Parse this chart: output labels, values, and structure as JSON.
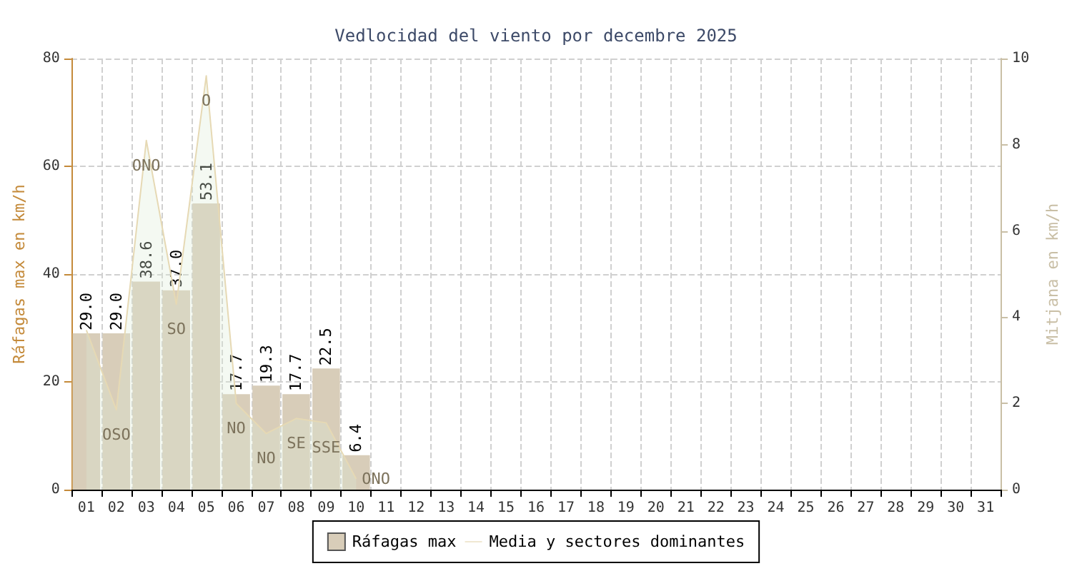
{
  "chart_data": {
    "type": "bar",
    "title": "Vedlocidad del viento por decembre 2025",
    "ylabel": "Ráfagas max en km/h",
    "y2label": "Mitjana en km/h",
    "categories": [
      "01",
      "02",
      "03",
      "04",
      "05",
      "06",
      "07",
      "08",
      "09",
      "10",
      "11",
      "12",
      "13",
      "14",
      "15",
      "16",
      "17",
      "18",
      "19",
      "20",
      "21",
      "22",
      "23",
      "24",
      "25",
      "26",
      "27",
      "28",
      "29",
      "30",
      "31"
    ],
    "series": [
      {
        "name": "Ráfagas max",
        "color": "#d8cdb9",
        "values": [
          29.0,
          29.0,
          38.6,
          37.0,
          53.1,
          17.7,
          19.3,
          17.7,
          22.5,
          6.4,
          null,
          null,
          null,
          null,
          null,
          null,
          null,
          null,
          null,
          null,
          null,
          null,
          null,
          null,
          null,
          null,
          null,
          null,
          null,
          null,
          null
        ],
        "value_labels": [
          "29.0",
          "29.0",
          "38.6",
          "37.0",
          "53.1",
          "17.7",
          "19.3",
          "17.7",
          "22.5",
          "6.4",
          null,
          null,
          null,
          null,
          null,
          null,
          null,
          null,
          null,
          null,
          null,
          null,
          null,
          null,
          null,
          null,
          null,
          null,
          null,
          null,
          null
        ]
      },
      {
        "name": "Media y sectores dominantes",
        "type": "area",
        "axis": "y2",
        "color": "#e6d9b4",
        "values": [
          3.7,
          1.85,
          8.1,
          4.3,
          9.6,
          2.0,
          1.3,
          1.65,
          1.55,
          0.25,
          null,
          null,
          null,
          null,
          null,
          null,
          null,
          null,
          null,
          null,
          null,
          null,
          null,
          null,
          null,
          null,
          null,
          null,
          null,
          null,
          null
        ],
        "value_labels": [
          null,
          "OSO",
          "ONO",
          "SO",
          "O",
          "NO",
          "NO",
          "SE",
          "SSE",
          "ONO",
          null,
          null,
          null,
          null,
          null,
          null,
          null,
          null,
          null,
          null,
          null,
          null,
          null,
          null,
          null,
          null,
          null,
          null,
          null,
          null,
          null
        ]
      }
    ],
    "ylim": [
      0,
      80
    ],
    "yticks": [
      0,
      20,
      40,
      60,
      80
    ],
    "y2lim": [
      0,
      10
    ],
    "y2ticks": [
      0,
      2,
      4,
      6,
      8,
      10
    ],
    "grid": true,
    "legend": "bottom"
  }
}
